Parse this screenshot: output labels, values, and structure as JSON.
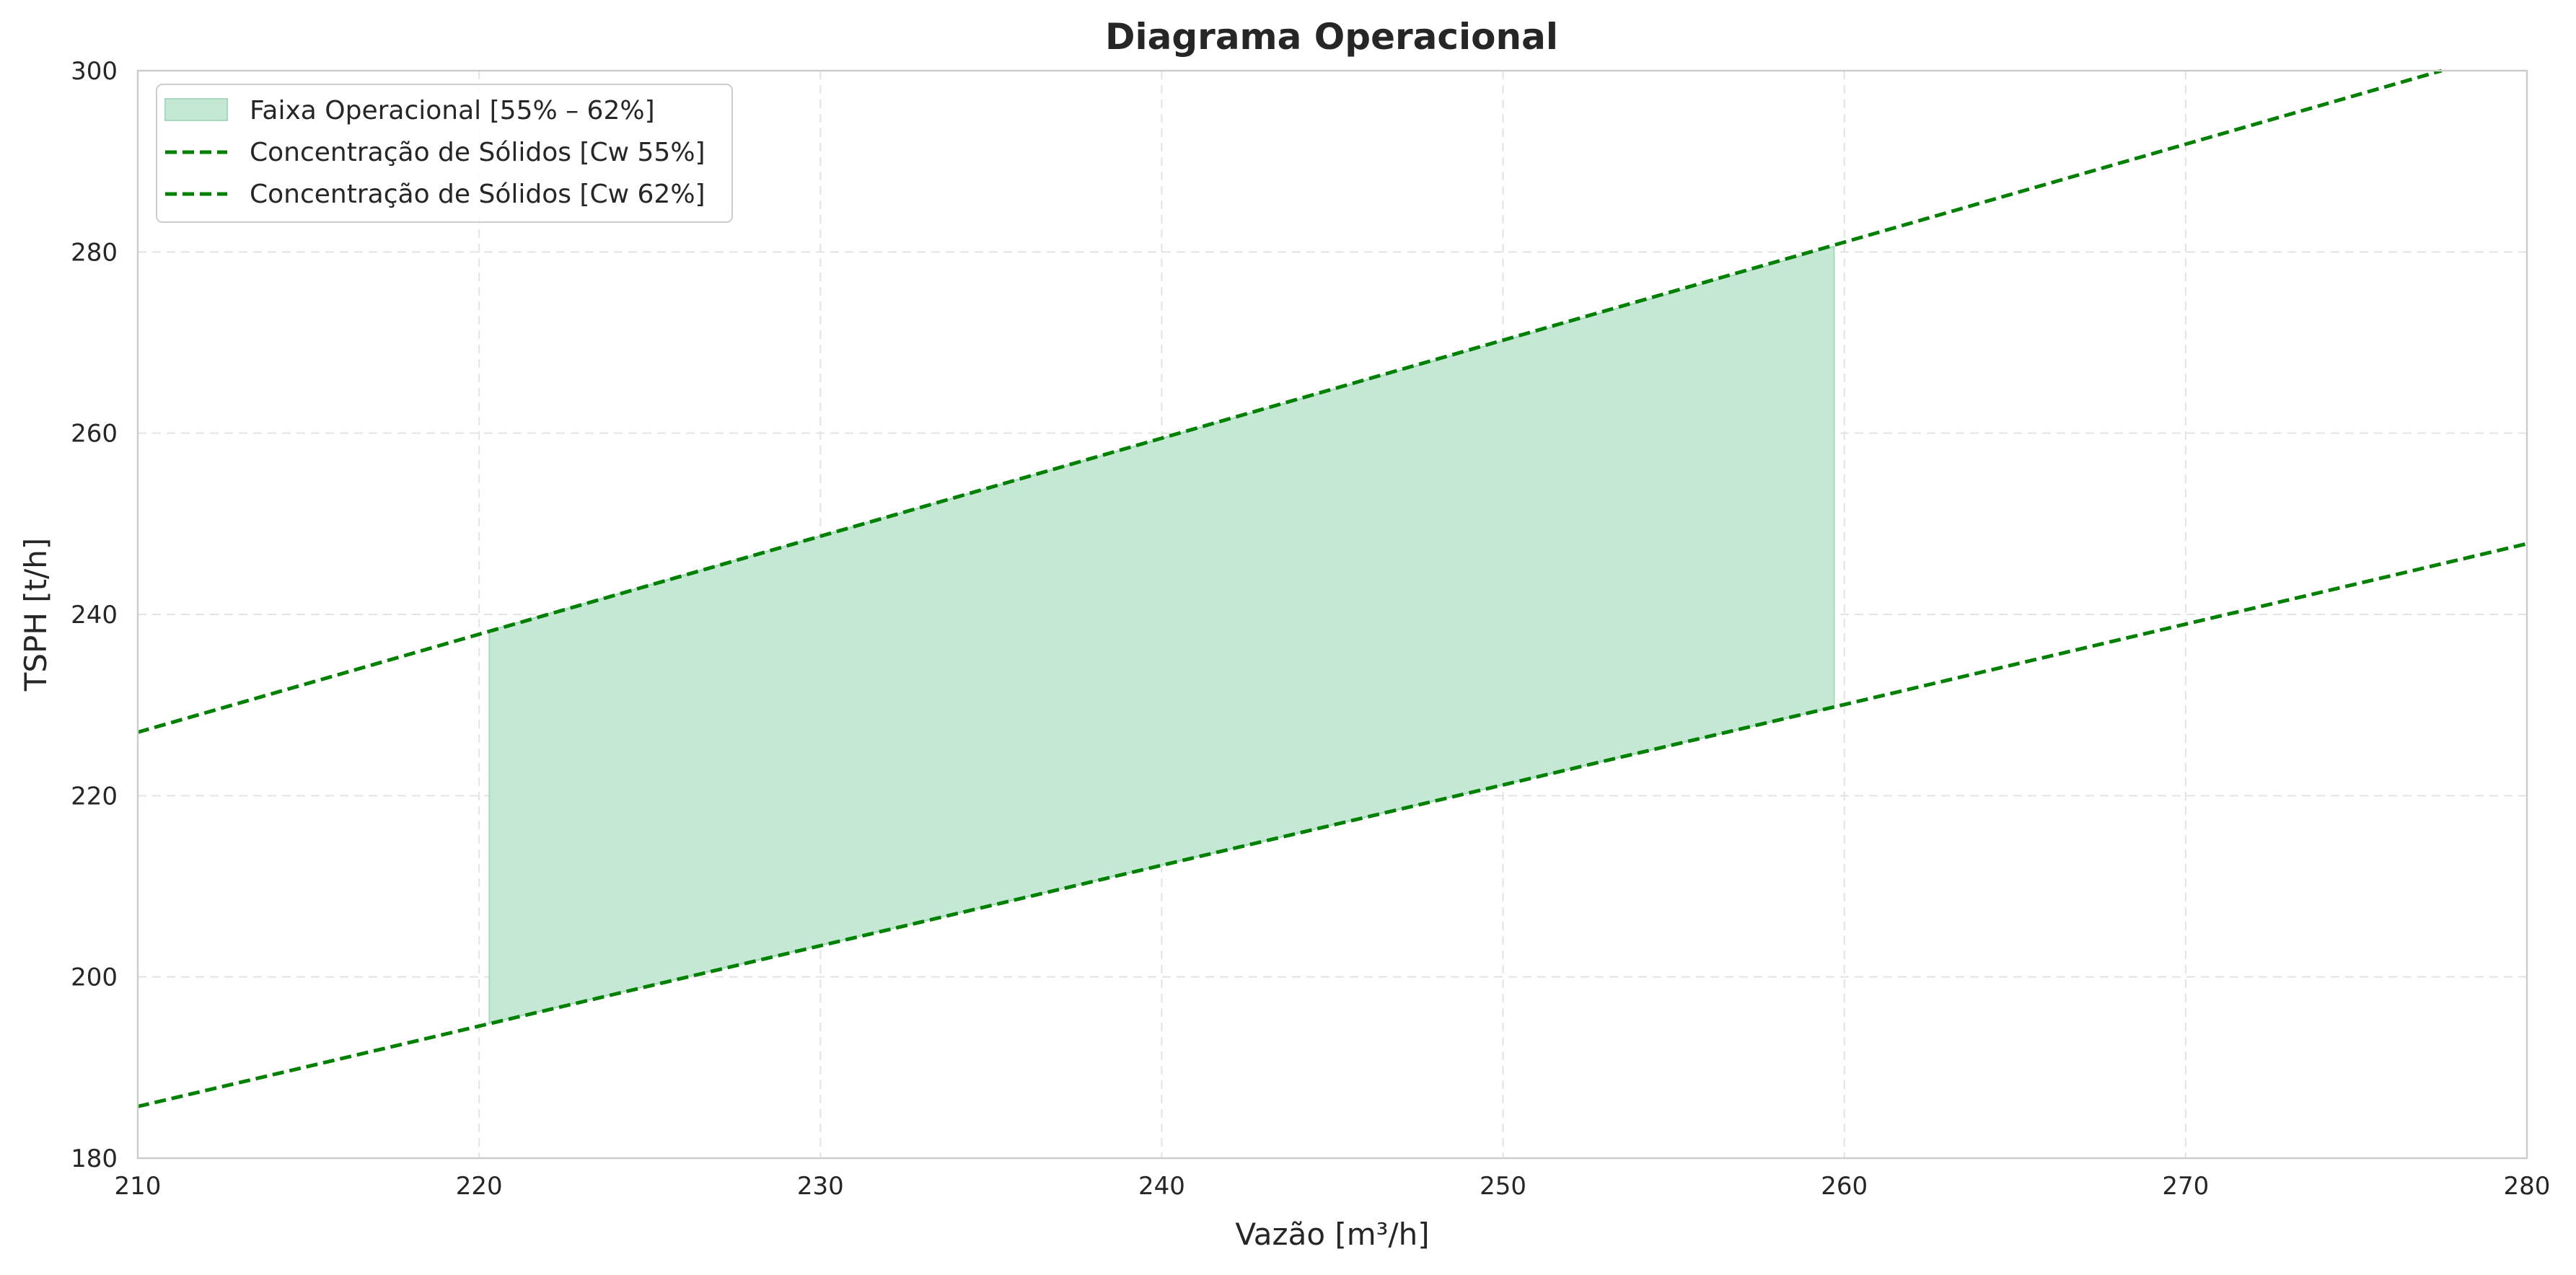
{
  "chart_data": {
    "type": "area",
    "title": "Diagrama Operacional",
    "xlabel": "Vazão [m³/h]",
    "ylabel": "TSPH [t/h]",
    "xlim": [
      210,
      280
    ],
    "ylim": [
      180,
      300
    ],
    "x_ticks": [
      210,
      220,
      230,
      240,
      250,
      260,
      270,
      280
    ],
    "y_ticks": [
      180,
      200,
      220,
      240,
      260,
      280,
      300
    ],
    "grid": true,
    "legend_position": "upper-left",
    "fill_region": {
      "name": "Faixa Operacional [55% – 62%]",
      "color": "#c5e8d5",
      "x": [
        220.3,
        259.7
      ],
      "lower": [
        194.9,
        229.8
      ],
      "upper": [
        238.2,
        280.6
      ]
    },
    "series": [
      {
        "name": "Concentração de Sólidos [Cw 55%]",
        "style": "dashed",
        "color": "#008000",
        "x": [
          210,
          280
        ],
        "y": [
          185.7,
          247.8
        ]
      },
      {
        "name": "Concentração de Sólidos [Cw 62%]",
        "style": "dashed",
        "color": "#008000",
        "x": [
          210,
          277.5
        ],
        "y": [
          227.0,
          300.0
        ]
      }
    ]
  }
}
